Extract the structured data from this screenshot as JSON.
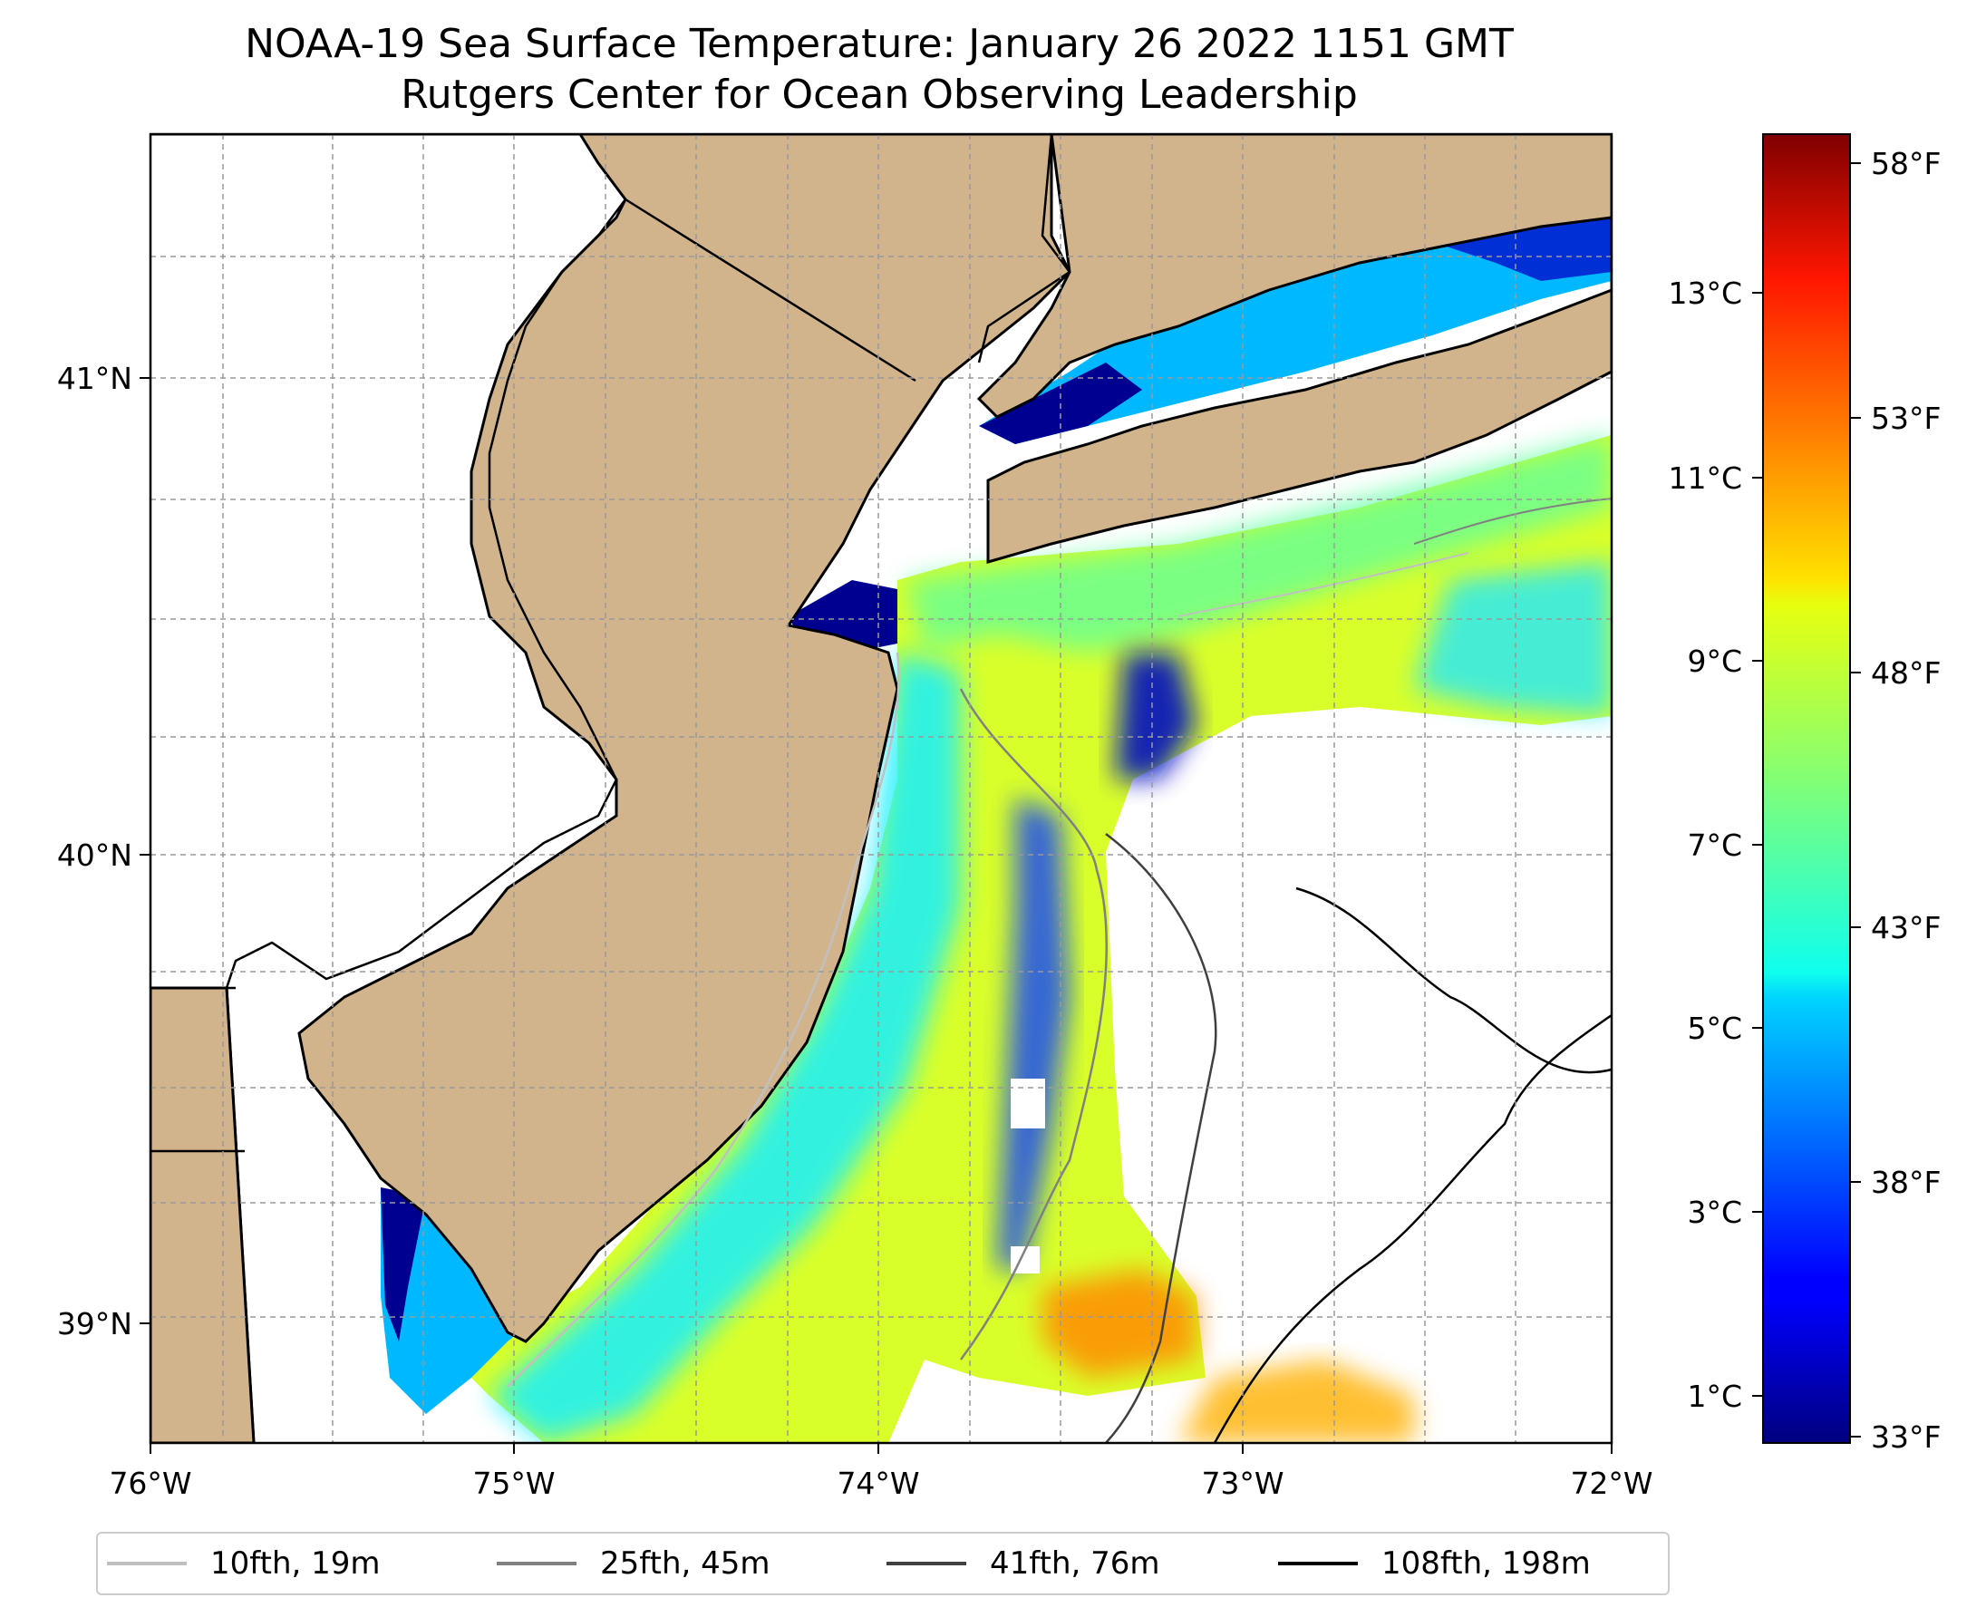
{
  "title": {
    "line1": "NOAA-19 Sea Surface Temperature: January 26 2022 1151 GMT",
    "line2": "Rutgers Center for Ocean Observing Leadership"
  },
  "map": {
    "lon_labels": [
      "76°W",
      "75°W",
      "74°W",
      "73°W",
      "72°W"
    ],
    "lat_labels": [
      "41°N",
      "40°N",
      "39°N"
    ],
    "land_color": "#d2b48c",
    "no_data_color": "#ffffff"
  },
  "colorbar": {
    "celsius_labels": [
      "13°C",
      "11°C",
      "9°C",
      "7°C",
      "5°C",
      "3°C",
      "1°C"
    ],
    "fahrenheit_labels": [
      "58°F",
      "53°F",
      "48°F",
      "43°F",
      "38°F",
      "33°F"
    ],
    "colormap": "jet"
  },
  "legend": {
    "items": [
      {
        "label": "10fth, 19m",
        "color": "#c0c0c0"
      },
      {
        "label": "25fth, 45m",
        "color": "#808080"
      },
      {
        "label": "41fth, 76m",
        "color": "#404040"
      },
      {
        "label": "108fth, 198m",
        "color": "#000000"
      }
    ]
  }
}
